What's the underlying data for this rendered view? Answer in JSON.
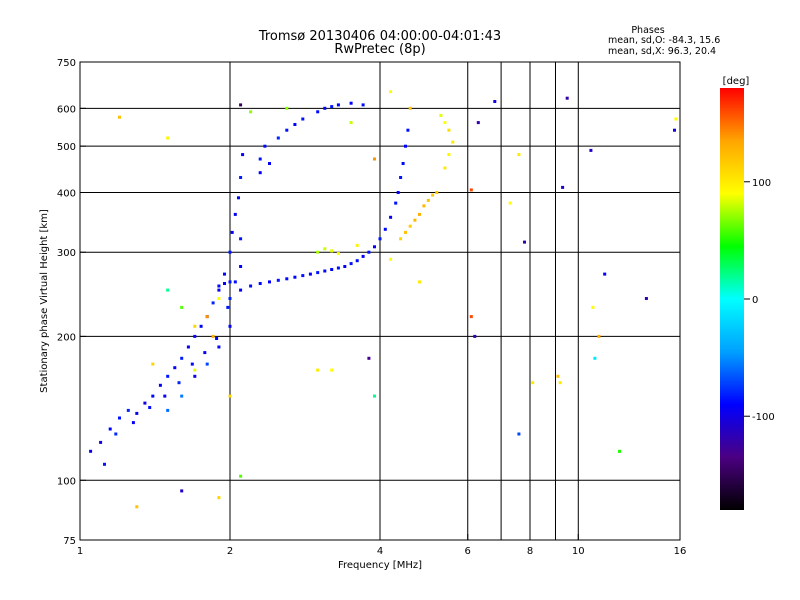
{
  "chart_data": {
    "type": "scatter",
    "title": "Tromsø 20130406 04:00:00-04:01:43",
    "subtitle": "RwPretec (8p)",
    "stats": {
      "heading": "Phases",
      "line_o": "mean, sd,O: -84.3, 15.6",
      "line_x": "mean, sd,X:  96.3, 20.4"
    },
    "xlabel": "Frequency [MHz]",
    "ylabel": "Stationary phase Virtual Height [km]",
    "x_scale": "log",
    "y_scale": "log",
    "xlim": [
      1,
      16
    ],
    "ylim": [
      75,
      750
    ],
    "x_ticks": [
      {
        "value": 1,
        "label": "1"
      },
      {
        "value": 2,
        "label": "2"
      },
      {
        "value": 4,
        "label": "4"
      },
      {
        "value": 6,
        "label": "6"
      },
      {
        "value": 8,
        "label": "8"
      },
      {
        "value": 10,
        "label": "10"
      },
      {
        "value": 16,
        "label": "16"
      }
    ],
    "x_grid": [
      2,
      4,
      6,
      7,
      8,
      9,
      10
    ],
    "y_ticks": [
      {
        "value": 75,
        "label": "75"
      },
      {
        "value": 100,
        "label": "100"
      },
      {
        "value": 200,
        "label": "200"
      },
      {
        "value": 300,
        "label": "300"
      },
      {
        "value": 400,
        "label": "400"
      },
      {
        "value": 500,
        "label": "500"
      },
      {
        "value": 600,
        "label": "600"
      },
      {
        "value": 750,
        "label": "750"
      }
    ],
    "y_grid": [
      100,
      200,
      300,
      400,
      500,
      600
    ],
    "grid": true,
    "colorbar": {
      "label": "[deg]",
      "range": [
        -180,
        180
      ],
      "ticks": [
        {
          "value": 100,
          "label": "100"
        },
        {
          "value": 0,
          "label": "0"
        },
        {
          "value": -100,
          "label": "-100"
        }
      ],
      "colors": [
        "#000000",
        "#4b0082",
        "#0000ff",
        "#00a0ff",
        "#00ffff",
        "#00ff00",
        "#ffff00",
        "#ffa500",
        "#ff0000"
      ]
    },
    "series": [
      {
        "points": [
          [
            1.05,
            115,
            -95
          ],
          [
            1.1,
            120,
            -100
          ],
          [
            1.15,
            128,
            -90
          ],
          [
            1.2,
            135,
            -85
          ],
          [
            1.25,
            140,
            -80
          ],
          [
            1.3,
            138,
            -95
          ],
          [
            1.35,
            145,
            -100
          ],
          [
            1.4,
            150,
            -88
          ],
          [
            1.45,
            158,
            -92
          ],
          [
            1.5,
            165,
            -85
          ],
          [
            1.55,
            172,
            -90
          ],
          [
            1.6,
            180,
            -82
          ],
          [
            1.65,
            190,
            -95
          ],
          [
            1.7,
            200,
            -88
          ],
          [
            1.75,
            210,
            -90
          ],
          [
            1.8,
            220,
            -85
          ],
          [
            1.85,
            235,
            -80
          ],
          [
            1.9,
            250,
            -92
          ],
          [
            1.95,
            270,
            -88
          ],
          [
            2.0,
            300,
            -85
          ],
          [
            2.02,
            330,
            -90
          ],
          [
            2.05,
            360,
            -95
          ],
          [
            2.08,
            390,
            -88
          ],
          [
            2.1,
            430,
            -82
          ],
          [
            2.12,
            480,
            -90
          ],
          [
            1.12,
            108,
            -85
          ],
          [
            1.18,
            125,
            -78
          ],
          [
            1.28,
            132,
            -92
          ],
          [
            1.38,
            142,
            -86
          ],
          [
            1.48,
            150,
            -94
          ],
          [
            1.58,
            160,
            -80
          ],
          [
            1.68,
            175,
            -88
          ],
          [
            1.78,
            185,
            -95
          ],
          [
            1.88,
            198,
            -90
          ],
          [
            1.98,
            230,
            -84
          ],
          [
            1.5,
            140,
            -60
          ],
          [
            1.6,
            150,
            -55
          ],
          [
            1.7,
            165,
            -95
          ],
          [
            1.8,
            175,
            -70
          ],
          [
            1.9,
            190,
            -88
          ],
          [
            2.0,
            210,
            -92
          ],
          [
            2.0,
            240,
            -80
          ],
          [
            2.05,
            260,
            -86
          ],
          [
            2.1,
            280,
            -90
          ],
          [
            2.1,
            320,
            -85
          ],
          [
            1.9,
            255,
            -88
          ],
          [
            1.95,
            258,
            -92
          ],
          [
            2.0,
            260,
            -85
          ],
          [
            2.1,
            250,
            -90
          ],
          [
            2.2,
            255,
            -86
          ],
          [
            2.3,
            258,
            -88
          ],
          [
            2.4,
            260,
            -92
          ],
          [
            2.5,
            262,
            -85
          ],
          [
            2.6,
            264,
            -88
          ],
          [
            2.7,
            266,
            -90
          ],
          [
            2.8,
            268,
            -86
          ],
          [
            2.9,
            270,
            -92
          ],
          [
            3.0,
            272,
            -85
          ],
          [
            3.1,
            274,
            -88
          ],
          [
            3.2,
            276,
            -90
          ],
          [
            3.3,
            278,
            -86
          ],
          [
            3.4,
            280,
            -92
          ],
          [
            3.5,
            284,
            -85
          ],
          [
            3.6,
            288,
            -88
          ],
          [
            3.7,
            294,
            -90
          ],
          [
            3.8,
            300,
            -86
          ],
          [
            3.9,
            308,
            -92
          ],
          [
            4.0,
            320,
            -85
          ],
          [
            4.1,
            335,
            -88
          ],
          [
            4.2,
            355,
            -90
          ],
          [
            4.3,
            380,
            -86
          ],
          [
            4.35,
            400,
            -92
          ],
          [
            4.4,
            430,
            -85
          ],
          [
            4.45,
            460,
            -88
          ],
          [
            4.5,
            500,
            -90
          ],
          [
            4.55,
            540,
            -86
          ],
          [
            2.3,
            440,
            -90
          ],
          [
            2.3,
            470,
            -85
          ],
          [
            2.35,
            500,
            -88
          ],
          [
            2.4,
            460,
            -92
          ],
          [
            2.5,
            520,
            -80
          ],
          [
            2.6,
            540,
            -86
          ],
          [
            2.7,
            555,
            -90
          ],
          [
            2.8,
            570,
            -85
          ],
          [
            3.0,
            590,
            -88
          ],
          [
            3.1,
            600,
            -92
          ],
          [
            3.2,
            605,
            -85
          ],
          [
            3.3,
            610,
            -88
          ],
          [
            3.5,
            615,
            -90
          ],
          [
            3.7,
            610,
            -86
          ],
          [
            3.0,
            300,
            75
          ],
          [
            3.1,
            305,
            80
          ],
          [
            3.2,
            302,
            85
          ],
          [
            3.3,
            298,
            90
          ],
          [
            3.6,
            310,
            95
          ],
          [
            4.2,
            290,
            90
          ],
          [
            4.4,
            320,
            110
          ],
          [
            4.5,
            330,
            120
          ],
          [
            4.6,
            340,
            115
          ],
          [
            4.7,
            350,
            125
          ],
          [
            4.8,
            360,
            130
          ],
          [
            4.9,
            375,
            125
          ],
          [
            5.0,
            385,
            120
          ],
          [
            5.1,
            395,
            115
          ],
          [
            5.2,
            400,
            118
          ],
          [
            5.4,
            450,
            100
          ],
          [
            5.5,
            480,
            95
          ],
          [
            5.6,
            510,
            100
          ],
          [
            5.5,
            540,
            105
          ],
          [
            5.4,
            560,
            90
          ],
          [
            5.3,
            580,
            85
          ],
          [
            1.5,
            250,
            20
          ],
          [
            1.6,
            230,
            60
          ],
          [
            1.7,
            210,
            110
          ],
          [
            1.8,
            220,
            140
          ],
          [
            1.9,
            240,
            90
          ],
          [
            1.85,
            200,
            130
          ],
          [
            2.0,
            150,
            110
          ],
          [
            1.7,
            170,
            85
          ],
          [
            3.0,
            170,
            100
          ],
          [
            3.2,
            170,
            90
          ],
          [
            1.4,
            175,
            110
          ],
          [
            1.2,
            575,
            120
          ],
          [
            1.5,
            520,
            95
          ],
          [
            2.1,
            610,
            -150
          ],
          [
            2.2,
            590,
            70
          ],
          [
            2.6,
            600,
            70
          ],
          [
            3.5,
            560,
            80
          ],
          [
            3.9,
            470,
            140
          ],
          [
            4.2,
            650,
            90
          ],
          [
            4.6,
            600,
            120
          ],
          [
            6.1,
            405,
            160
          ],
          [
            6.3,
            560,
            -120
          ],
          [
            6.8,
            620,
            -100
          ],
          [
            7.3,
            380,
            90
          ],
          [
            7.6,
            480,
            100
          ],
          [
            7.8,
            315,
            -120
          ],
          [
            9.3,
            410,
            -110
          ],
          [
            9.5,
            630,
            -120
          ],
          [
            9.1,
            165,
            120
          ],
          [
            10.6,
            490,
            -110
          ],
          [
            10.7,
            230,
            90
          ],
          [
            10.8,
            180,
            -10
          ],
          [
            11.0,
            200,
            130
          ],
          [
            11.3,
            270,
            -90
          ],
          [
            12.1,
            115,
            50
          ],
          [
            13.7,
            240,
            -120
          ],
          [
            15.6,
            540,
            -100
          ],
          [
            15.7,
            570,
            90
          ],
          [
            1.3,
            88,
            120
          ],
          [
            1.6,
            95,
            -110
          ],
          [
            1.9,
            92,
            110
          ],
          [
            2.1,
            102,
            60
          ],
          [
            3.8,
            180,
            -130
          ],
          [
            3.9,
            150,
            20
          ],
          [
            4.8,
            260,
            100
          ],
          [
            6.2,
            200,
            -120
          ],
          [
            6.1,
            220,
            160
          ],
          [
            7.6,
            125,
            -70
          ],
          [
            8.1,
            160,
            100
          ],
          [
            9.2,
            160,
            100
          ]
        ]
      }
    ]
  }
}
